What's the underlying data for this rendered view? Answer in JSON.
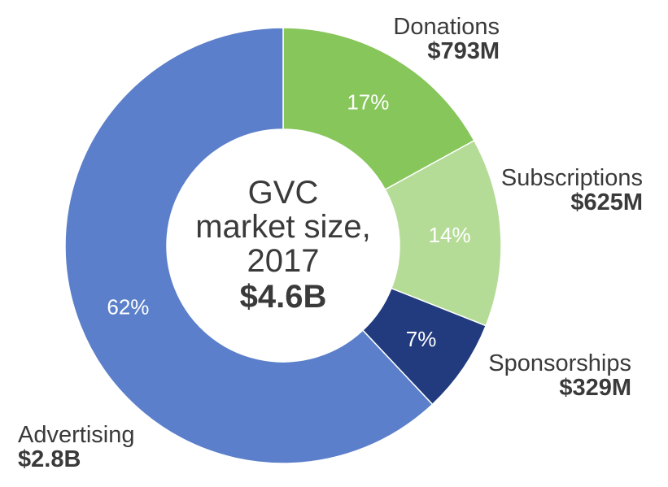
{
  "chart_data": {
    "type": "pie",
    "title": "",
    "center": {
      "line1": "GVC",
      "line2": "market size,",
      "line3": "2017",
      "total": "$4.6B"
    },
    "slices": [
      {
        "name": "Donations",
        "value_label": "$793M",
        "percent": 17,
        "percent_label": "17%",
        "color": "#87c65a"
      },
      {
        "name": "Subscriptions",
        "value_label": "$625M",
        "percent": 14,
        "percent_label": "14%",
        "color": "#b5dc97"
      },
      {
        "name": "Sponsorships",
        "value_label": "$329M",
        "percent": 7,
        "percent_label": "7%",
        "color": "#213b7e"
      },
      {
        "name": "Advertising",
        "value_label": "$2.8B",
        "percent": 62,
        "percent_label": "62%",
        "color": "#5b7fca"
      }
    ]
  }
}
